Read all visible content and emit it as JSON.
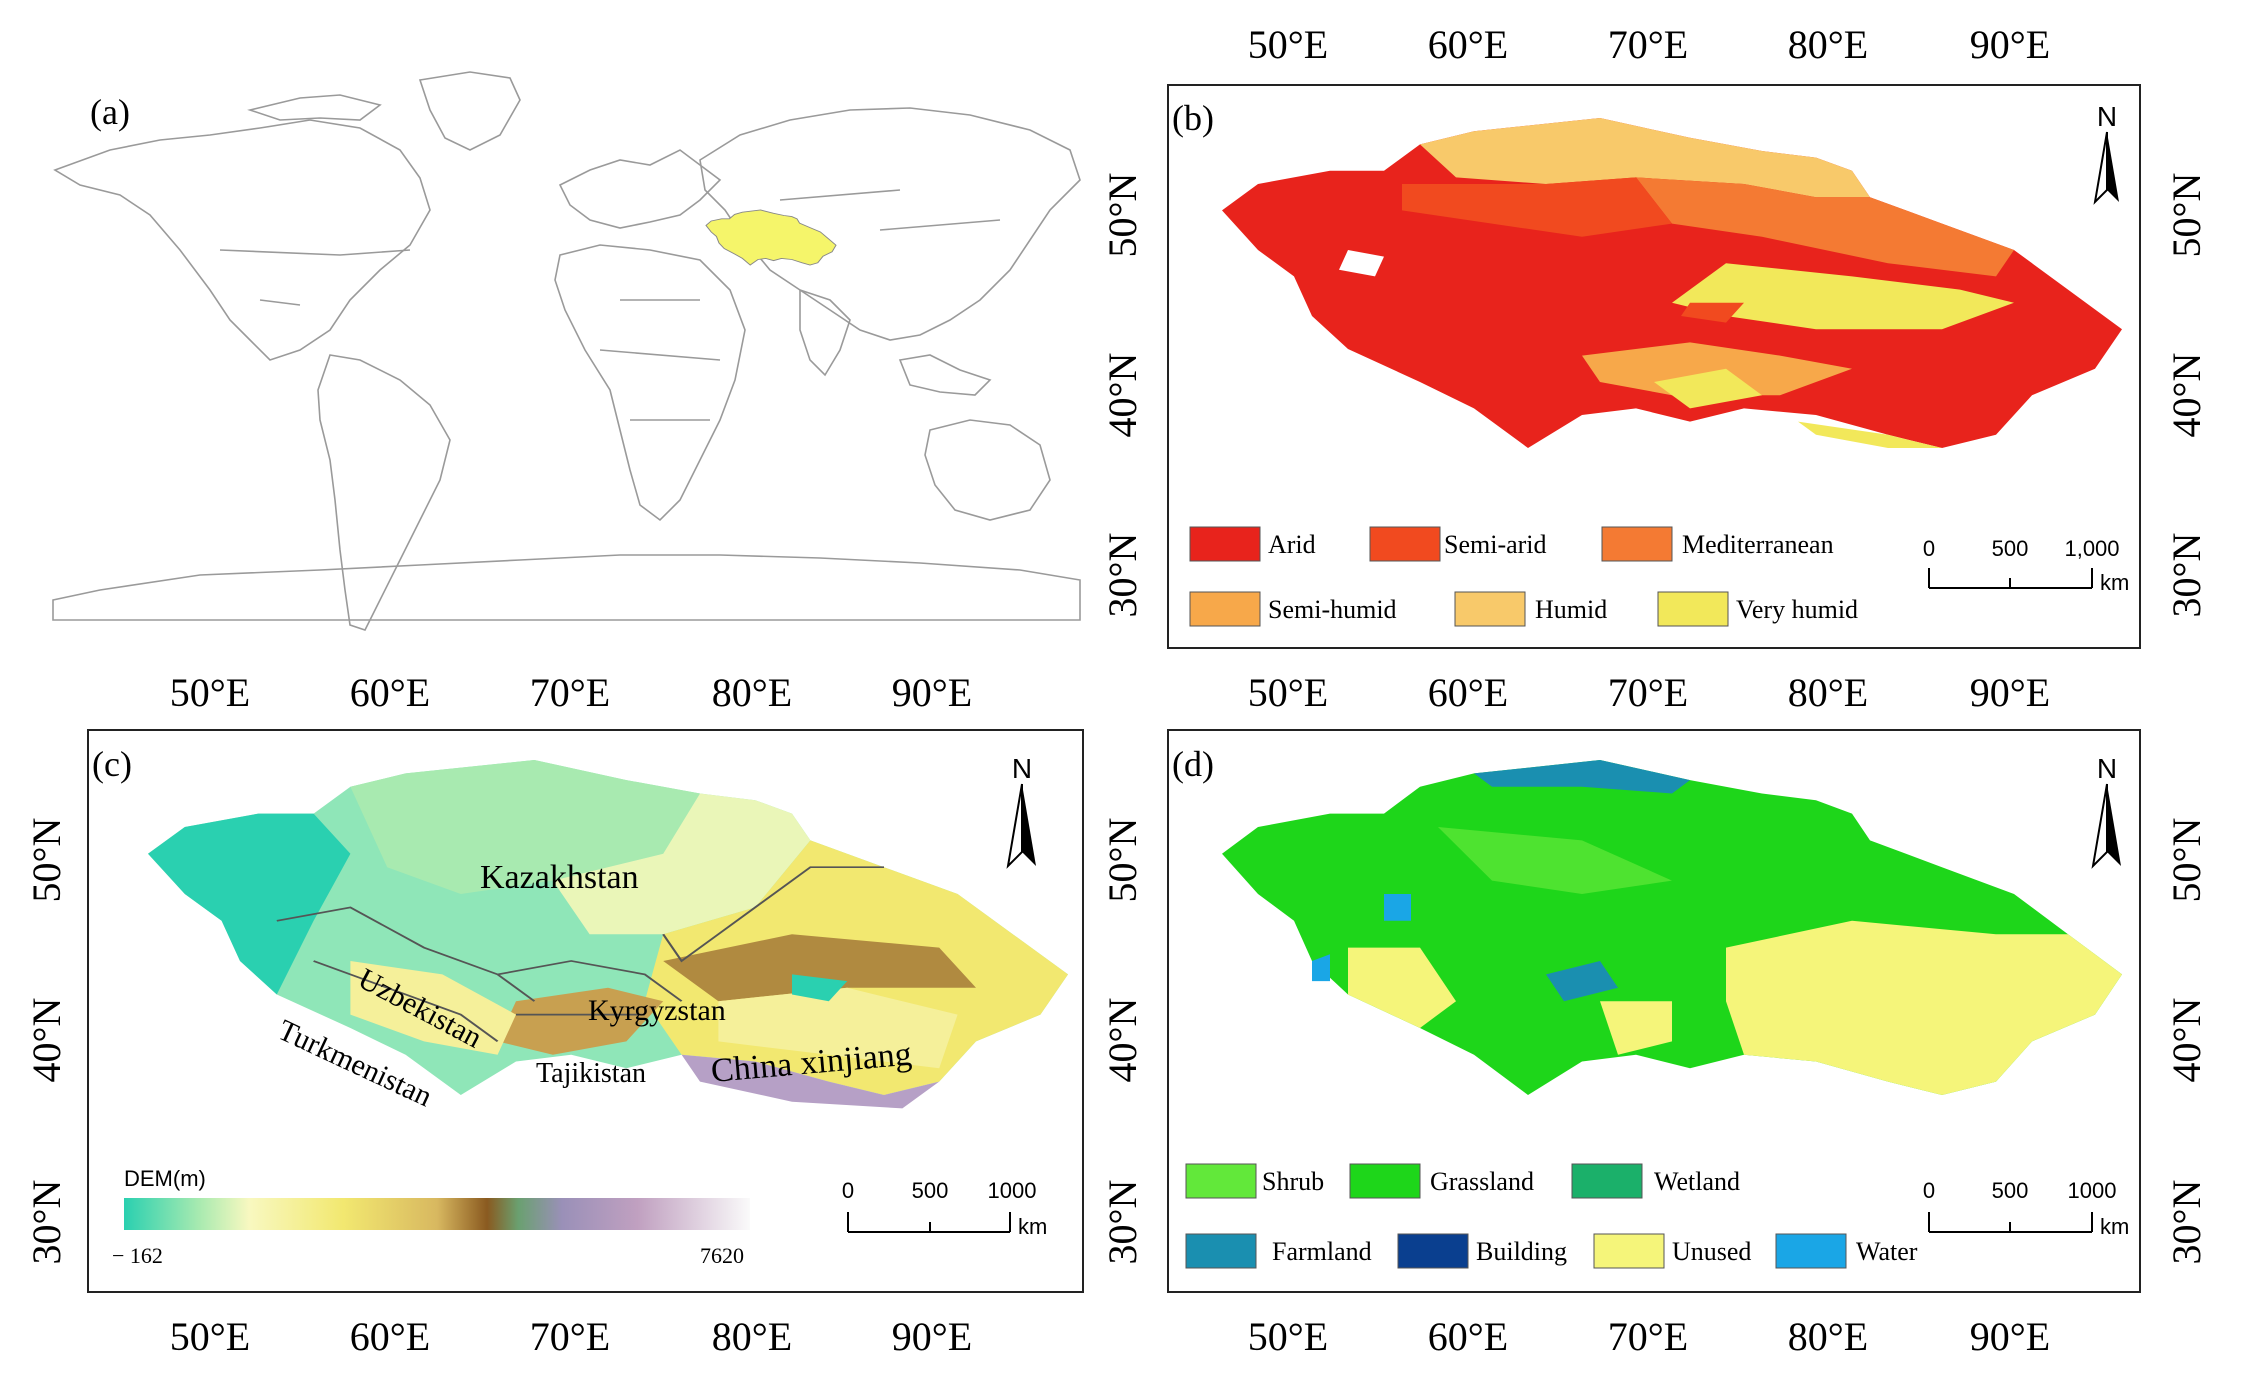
{
  "panels": {
    "a": {
      "label": "(a)"
    },
    "b": {
      "label": "(b)",
      "north": "N",
      "legend": [
        "Arid",
        "Semi-arid",
        "Mediterranean",
        "Semi-humid",
        "Humid",
        "Very humid"
      ],
      "scale_ticks": [
        "0",
        "500",
        "1,000"
      ],
      "scale_unit": "km"
    },
    "c": {
      "label": "(c)",
      "north": "N",
      "countries": [
        "Kazakhstan",
        "Uzbekistan",
        "Turkmenistan",
        "Kyrgyzstan",
        "Tajikistan",
        "China xinjiang"
      ],
      "dem_title": "DEM(m)",
      "dem_min": "− 162",
      "dem_max": "7620",
      "scale_ticks": [
        "0",
        "500",
        "1000"
      ],
      "scale_unit": "km"
    },
    "d": {
      "label": "(d)",
      "north": "N",
      "legend": [
        "Shrub",
        "Grassland",
        "Wetland",
        "Farmland",
        "Building",
        "Unused",
        "Water"
      ],
      "scale_ticks": [
        "0",
        "500",
        "1000"
      ],
      "scale_unit": "km"
    }
  },
  "lon_ticks": [
    "50°E",
    "60°E",
    "70°E",
    "80°E",
    "90°E"
  ],
  "lat_ticks": [
    "50°N",
    "40°N",
    "30°N"
  ],
  "colors": {
    "arid": "#e8231c",
    "semi_arid": "#f14a1f",
    "mediterranean": "#f47a33",
    "semi_humid": "#f7a84a",
    "humid": "#f8c96a",
    "very_humid": "#f2e85a",
    "shrub": "#62e83a",
    "grassland": "#1ed61a",
    "wetland": "#1bb06a",
    "farmland": "#1a8fb0",
    "building": "#0a3f8f",
    "unused": "#f5f57a",
    "water": "#1aa6e6",
    "highlight": "#f5f56a"
  }
}
